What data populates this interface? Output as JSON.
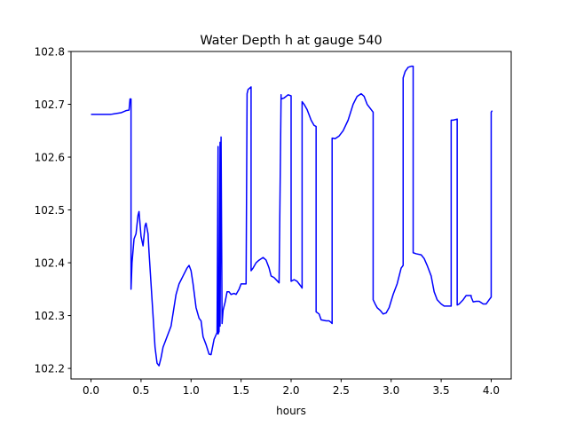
{
  "chart_data": {
    "type": "line",
    "title": "Water Depth h at gauge 540",
    "xlabel": "hours",
    "ylabel": "",
    "xlim": [
      -0.2,
      4.2
    ],
    "ylim": [
      102.18,
      102.8
    ],
    "xticks": [
      0.0,
      0.5,
      1.0,
      1.5,
      2.0,
      2.5,
      3.0,
      3.5,
      4.0
    ],
    "xtick_labels": [
      "0.0",
      "0.5",
      "1.0",
      "1.5",
      "2.0",
      "2.5",
      "3.0",
      "3.5",
      "4.0"
    ],
    "yticks": [
      102.2,
      102.3,
      102.4,
      102.5,
      102.6,
      102.7,
      102.8
    ],
    "ytick_labels": [
      "102.2",
      "102.3",
      "102.4",
      "102.5",
      "102.6",
      "102.7",
      "102.8"
    ],
    "grid": false,
    "series": [
      {
        "color": "#0000ff",
        "x": [
          0.0,
          0.1,
          0.2,
          0.3,
          0.35,
          0.38,
          0.39,
          0.4,
          0.4,
          0.41,
          0.43,
          0.45,
          0.47,
          0.48,
          0.5,
          0.52,
          0.54,
          0.55,
          0.57,
          0.58,
          0.6,
          0.62,
          0.64,
          0.66,
          0.68,
          0.7,
          0.72,
          0.75,
          0.8,
          0.85,
          0.88,
          0.92,
          0.96,
          0.98,
          1.0,
          1.02,
          1.05,
          1.08,
          1.1,
          1.12,
          1.15,
          1.18,
          1.2,
          1.23,
          1.26,
          1.27,
          1.27,
          1.28,
          1.29,
          1.29,
          1.3,
          1.31,
          1.32,
          1.34,
          1.36,
          1.38,
          1.4,
          1.43,
          1.45,
          1.48,
          1.5,
          1.53,
          1.55,
          1.56,
          1.57,
          1.6,
          1.6,
          1.62,
          1.65,
          1.68,
          1.72,
          1.75,
          1.78,
          1.8,
          1.83,
          1.86,
          1.88,
          1.9,
          1.9,
          1.93,
          1.97,
          2.0,
          2.0,
          2.03,
          2.06,
          2.08,
          2.1,
          2.11,
          2.11,
          2.13,
          2.16,
          2.2,
          2.23,
          2.25,
          2.25,
          2.28,
          2.3,
          2.35,
          2.38,
          2.4,
          2.41,
          2.41,
          2.44,
          2.48,
          2.52,
          2.57,
          2.62,
          2.66,
          2.7,
          2.73,
          2.76,
          2.8,
          2.82,
          2.82,
          2.84,
          2.86,
          2.89,
          2.92,
          2.95,
          2.98,
          3.02,
          3.06,
          3.1,
          3.12,
          3.12,
          3.14,
          3.17,
          3.2,
          3.22,
          3.22,
          3.25,
          3.3,
          3.33,
          3.36,
          3.4,
          3.43,
          3.46,
          3.5,
          3.53,
          3.56,
          3.6,
          3.6,
          3.62,
          3.66,
          3.66,
          3.68,
          3.72,
          3.75,
          3.8,
          3.8,
          3.82,
          3.85,
          3.88,
          3.92,
          3.95,
          3.98,
          4.0,
          4.0,
          4.01
        ],
        "y": [
          102.681,
          102.681,
          102.681,
          102.684,
          102.688,
          102.689,
          102.71,
          102.71,
          102.35,
          102.4,
          102.445,
          102.455,
          102.49,
          102.497,
          102.45,
          102.432,
          102.47,
          102.475,
          102.455,
          102.42,
          102.36,
          102.3,
          102.24,
          102.21,
          102.205,
          102.22,
          102.24,
          102.255,
          102.28,
          102.34,
          102.36,
          102.375,
          102.39,
          102.395,
          102.385,
          102.36,
          102.315,
          102.295,
          102.29,
          102.26,
          102.245,
          102.227,
          102.226,
          102.255,
          102.268,
          102.62,
          102.265,
          102.27,
          102.628,
          102.28,
          102.638,
          102.285,
          102.31,
          102.325,
          102.345,
          102.345,
          102.34,
          102.342,
          102.34,
          102.35,
          102.36,
          102.36,
          102.36,
          102.72,
          102.728,
          102.733,
          102.385,
          102.39,
          102.4,
          102.405,
          102.41,
          102.405,
          102.39,
          102.375,
          102.372,
          102.366,
          102.362,
          102.718,
          102.71,
          102.712,
          102.718,
          102.716,
          102.365,
          102.368,
          102.365,
          102.36,
          102.355,
          102.352,
          102.705,
          102.7,
          102.69,
          102.67,
          102.66,
          102.658,
          102.307,
          102.303,
          102.292,
          102.29,
          102.29,
          102.287,
          102.285,
          102.636,
          102.635,
          102.64,
          102.65,
          102.67,
          102.7,
          102.715,
          102.72,
          102.715,
          102.7,
          102.69,
          102.685,
          102.33,
          102.322,
          102.315,
          102.31,
          102.303,
          102.305,
          102.315,
          102.34,
          102.36,
          102.39,
          102.395,
          102.75,
          102.762,
          102.77,
          102.772,
          102.772,
          102.419,
          102.417,
          102.415,
          102.408,
          102.395,
          102.375,
          102.345,
          102.33,
          102.322,
          102.318,
          102.318,
          102.318,
          102.67,
          102.67,
          102.672,
          102.32,
          102.322,
          102.33,
          102.338,
          102.338,
          102.335,
          102.326,
          102.327,
          102.327,
          102.322,
          102.322,
          102.33,
          102.335,
          102.685,
          102.688
        ]
      }
    ]
  }
}
